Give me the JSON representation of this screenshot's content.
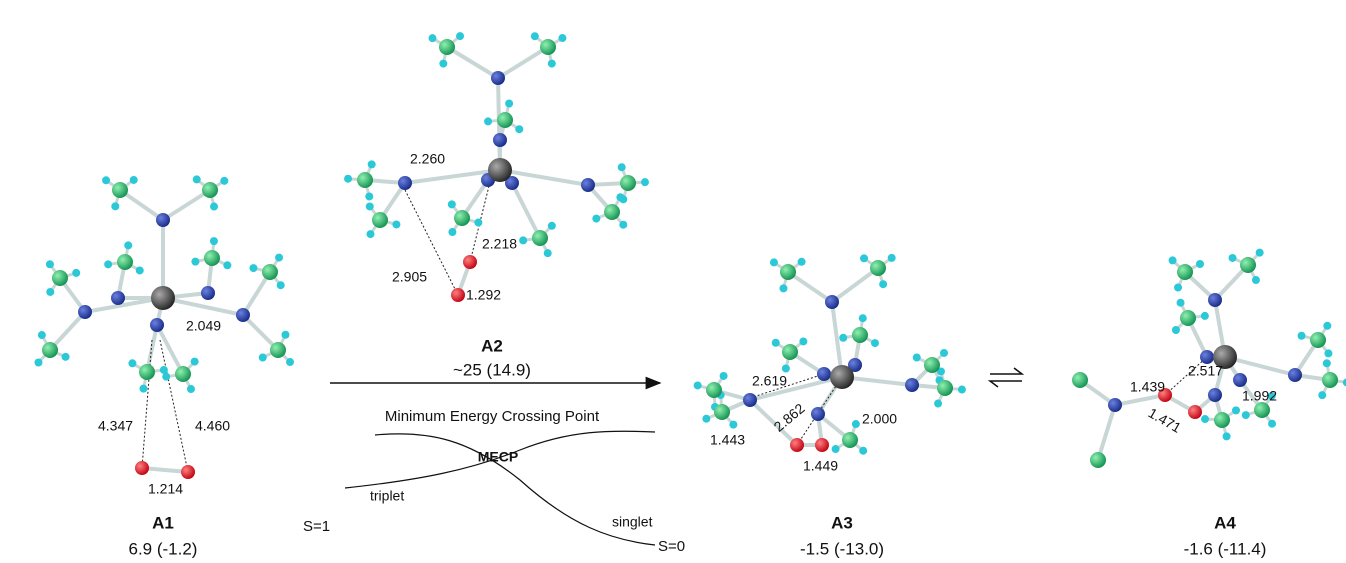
{
  "structures": [
    {
      "label": "A1",
      "energy": "6.9 (-1.2)",
      "distances": [
        "2.049",
        "4.347",
        "4.460",
        "1.214"
      ]
    },
    {
      "label": "A2",
      "energy": "~25 (14.9)",
      "distances": [
        "2.260",
        "2.218",
        "2.905",
        "1.292"
      ]
    },
    {
      "label": "A3",
      "energy": "-1.5 (-13.0)",
      "distances": [
        "2.619",
        "2.862",
        "2.000",
        "1.443",
        "1.449"
      ]
    },
    {
      "label": "A4",
      "energy": "-1.6 (-11.4)",
      "distances": [
        "1.439",
        "2.517",
        "1.992",
        "1.471"
      ]
    }
  ],
  "arrow_label": "Minimum Energy Crossing Point",
  "crossing": {
    "point": "MECP",
    "triplet": "triplet",
    "singlet": "singlet",
    "high_spin": "S=1",
    "low_spin": "S=0"
  }
}
